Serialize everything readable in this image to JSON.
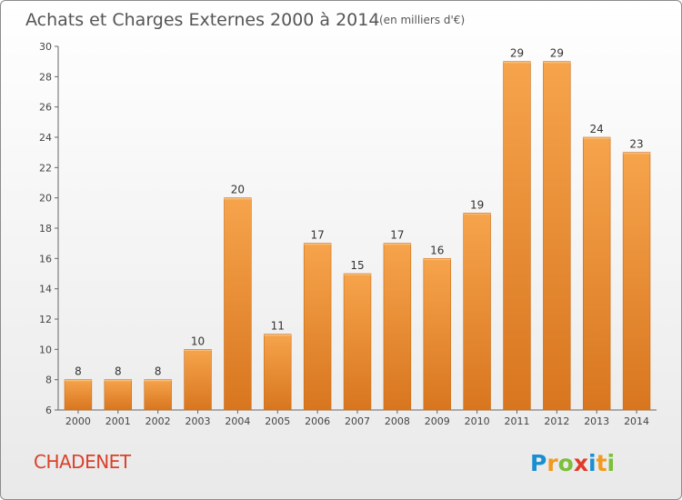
{
  "chart_data": {
    "type": "bar",
    "title": "Achats et Charges Externes 2000 à 2014",
    "subtitle": "(en milliers d'€)",
    "xlabel": "",
    "ylabel": "",
    "categories": [
      "2000",
      "2001",
      "2002",
      "2003",
      "2004",
      "2005",
      "2006",
      "2007",
      "2008",
      "2009",
      "2010",
      "2011",
      "2012",
      "2013",
      "2014"
    ],
    "values": [
      8,
      8,
      8,
      10,
      20,
      11,
      17,
      15,
      17,
      16,
      19,
      29,
      29,
      24,
      23
    ],
    "value_labels": [
      "8",
      "8",
      "8",
      "10",
      "20",
      "11",
      "17",
      "15",
      "17",
      "16",
      "19",
      "29",
      "29",
      "24",
      "23"
    ],
    "ylim": [
      6,
      30
    ],
    "yticks": [
      6,
      8,
      10,
      12,
      14,
      16,
      18,
      20,
      22,
      24,
      26,
      28,
      30
    ],
    "grid": false,
    "bar_color": "#f39b3f",
    "bar_color_dark": "#d97a22"
  },
  "commune": "CHADENET",
  "logo": {
    "text": "Proxiti",
    "letters": [
      {
        "ch": "P",
        "color": "#1a8fd0"
      },
      {
        "ch": "r",
        "color": "#f29a1f"
      },
      {
        "ch": "o",
        "color": "#7cbf3a"
      },
      {
        "ch": "x",
        "color": "#e03a2a"
      },
      {
        "ch": "i",
        "color": "#1a8fd0"
      },
      {
        "ch": "t",
        "color": "#f29a1f"
      },
      {
        "ch": "i",
        "color": "#7cbf3a"
      }
    ]
  }
}
